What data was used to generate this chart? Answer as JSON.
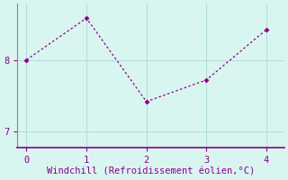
{
  "x": [
    0,
    1,
    2,
    3,
    4
  ],
  "y": [
    8.0,
    8.58,
    7.42,
    7.72,
    8.42
  ],
  "line_color": "#8B008B",
  "marker_color": "#8B008B",
  "background_color": "#d9f5f0",
  "grid_color": "#b0ddd8",
  "spine_color": "#888888",
  "xspine_color": "#8B008B",
  "xlabel": "Windchill (Refroidissement éolien,°C)",
  "xlabel_color": "#8B008B",
  "tick_color": "#8B008B",
  "xlim": [
    -0.15,
    4.3
  ],
  "ylim": [
    6.78,
    8.78
  ],
  "yticks": [
    7,
    8
  ],
  "xticks": [
    0,
    1,
    2,
    3,
    4
  ],
  "xlabel_fontsize": 7.5,
  "tick_fontsize": 7.5
}
